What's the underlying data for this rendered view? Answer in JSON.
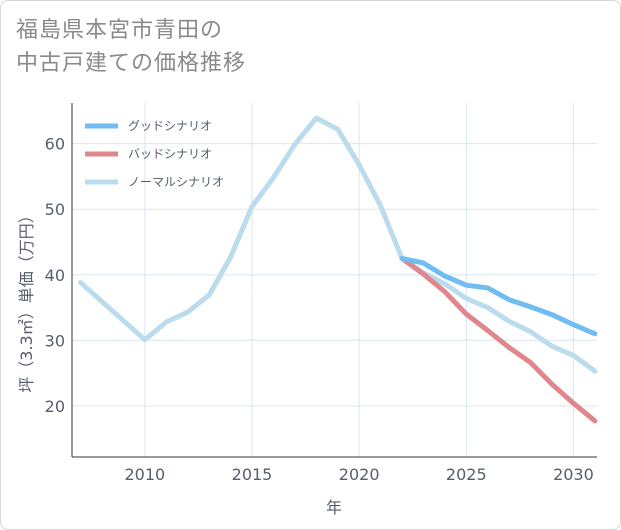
{
  "title": {
    "line1": "福島県本宮市青田の",
    "line2": "中古戸建ての価格推移"
  },
  "chart_data": {
    "type": "line",
    "xlabel": "年",
    "ylabel": "坪（3.3㎡）単価（万円）",
    "xlim": [
      2006.6,
      2031.1
    ],
    "ylim": [
      12.2,
      66.2
    ],
    "xticks": [
      2010,
      2015,
      2020,
      2025,
      2030
    ],
    "yticks": [
      20,
      30,
      40,
      50,
      60
    ],
    "legend_position": "top-left",
    "series": [
      {
        "name": "グッドシナリオ",
        "color": "#71bdf2",
        "x": [
          2022,
          2023,
          2024,
          2025,
          2026,
          2027,
          2028,
          2029,
          2030,
          2031
        ],
        "y": [
          42.5,
          41.8,
          39.8,
          38.4,
          38.0,
          36.2,
          35.1,
          33.9,
          32.4,
          31.0
        ]
      },
      {
        "name": "バッドシナリオ",
        "color": "#e0878e",
        "x": [
          2022,
          2023,
          2024,
          2025,
          2026,
          2027,
          2028,
          2029,
          2030,
          2031
        ],
        "y": [
          42.5,
          40.1,
          37.4,
          34.0,
          31.5,
          28.9,
          26.6,
          23.3,
          20.4,
          17.7
        ]
      },
      {
        "name": "ノーマルシナリオ",
        "color": "#badcec",
        "x": [
          2007,
          2008,
          2009,
          2010,
          2011,
          2012,
          2013,
          2014,
          2015,
          2016,
          2017,
          2018,
          2019,
          2020,
          2021,
          2022,
          2023,
          2024,
          2025,
          2026,
          2027,
          2028,
          2029,
          2030,
          2031
        ],
        "y": [
          38.8,
          35.9,
          33.0,
          30.1,
          32.8,
          34.3,
          36.9,
          42.7,
          50.4,
          54.8,
          59.9,
          63.9,
          62.2,
          56.8,
          50.5,
          42.5,
          40.3,
          38.6,
          36.4,
          35.0,
          32.9,
          31.3,
          29.1,
          27.7,
          25.3
        ]
      }
    ]
  }
}
